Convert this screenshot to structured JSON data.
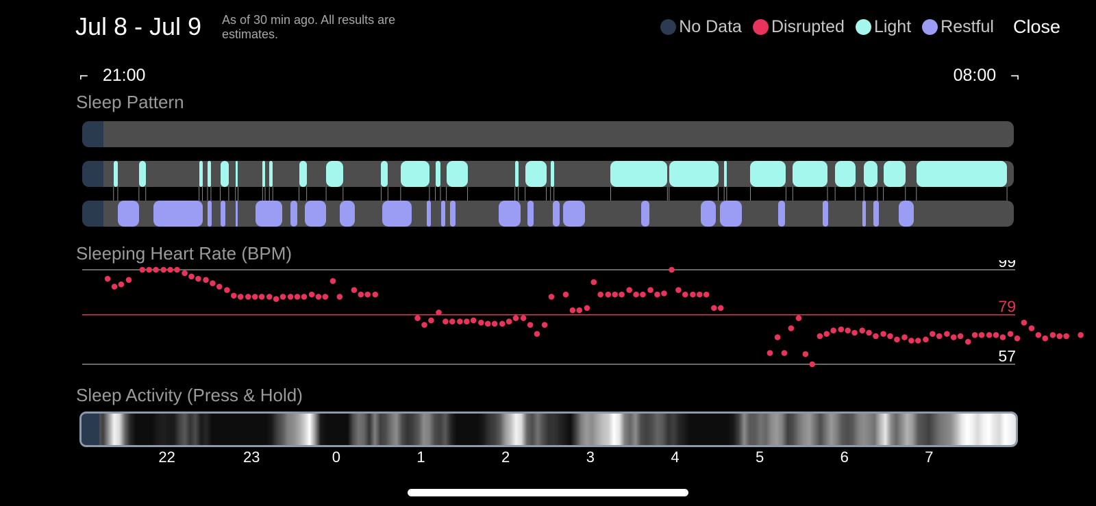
{
  "header": {
    "title": "Jul 8 - Jul 9",
    "subtitle": "As of 30 min ago. All results are estimates.",
    "close_label": "Close"
  },
  "legend": [
    {
      "label": "No Data",
      "color": "#2c3b52"
    },
    {
      "label": "Disrupted",
      "color": "#e8335a"
    },
    {
      "label": "Light",
      "color": "#a4f7ec"
    },
    {
      "label": "Restful",
      "color": "#9b9cf4"
    }
  ],
  "time_range": {
    "start": "21:00",
    "end": "08:00"
  },
  "sleep_pattern": {
    "label": "Sleep Pattern",
    "light_segments": [
      [
        0.37,
        0.42
      ],
      [
        0.67,
        0.75
      ],
      [
        1.38,
        1.42
      ],
      [
        1.48,
        1.52
      ],
      [
        1.63,
        1.73
      ],
      [
        1.81,
        1.84
      ],
      [
        2.13,
        2.16
      ],
      [
        2.21,
        2.25
      ],
      [
        2.56,
        2.65
      ],
      [
        2.88,
        3.08
      ],
      [
        3.53,
        3.61
      ],
      [
        3.76,
        4.1
      ],
      [
        4.17,
        4.23
      ],
      [
        4.3,
        4.55
      ],
      [
        5.11,
        5.15
      ],
      [
        5.23,
        5.48
      ],
      [
        5.53,
        5.57
      ],
      [
        6.24,
        6.91
      ],
      [
        6.93,
        7.51
      ],
      [
        7.58,
        7.61
      ],
      [
        7.89,
        8.31
      ],
      [
        8.39,
        8.8
      ],
      [
        8.89,
        9.13
      ],
      [
        9.23,
        9.39
      ],
      [
        9.46,
        9.72
      ],
      [
        9.85,
        10.92
      ]
    ],
    "restful_segments": [
      [
        0.42,
        0.67
      ],
      [
        0.84,
        1.42
      ],
      [
        1.48,
        1.53
      ],
      [
        1.63,
        1.69
      ],
      [
        1.81,
        1.84
      ],
      [
        2.05,
        2.36
      ],
      [
        2.46,
        2.54
      ],
      [
        2.63,
        2.88
      ],
      [
        3.04,
        3.22
      ],
      [
        3.54,
        3.89
      ],
      [
        4.07,
        4.12
      ],
      [
        4.24,
        4.29
      ],
      [
        4.34,
        4.41
      ],
      [
        4.92,
        5.18
      ],
      [
        5.26,
        5.33
      ],
      [
        5.56,
        5.64
      ],
      [
        5.68,
        5.94
      ],
      [
        6.6,
        6.7
      ],
      [
        7.3,
        7.48
      ],
      [
        7.53,
        7.79
      ],
      [
        8.22,
        8.3
      ],
      [
        8.74,
        8.81
      ],
      [
        9.21,
        9.25
      ],
      [
        9.34,
        9.41
      ],
      [
        9.64,
        9.82
      ]
    ]
  },
  "heart_rate": {
    "label": "Sleeping Heart Rate (BPM)",
    "max_label": "99",
    "avg_label": "79",
    "min_label": "57",
    "max": 99,
    "avg": 79,
    "min": 57,
    "samples": [
      [
        0.3,
        95
      ],
      [
        0.38,
        91.5
      ],
      [
        0.46,
        92.5
      ],
      [
        0.55,
        94.5
      ],
      [
        0.71,
        99
      ],
      [
        0.79,
        99
      ],
      [
        0.87,
        99
      ],
      [
        0.96,
        99
      ],
      [
        1.04,
        99
      ],
      [
        1.12,
        99
      ],
      [
        1.21,
        97.5
      ],
      [
        1.29,
        96
      ],
      [
        1.37,
        95
      ],
      [
        1.46,
        94.5
      ],
      [
        1.54,
        93
      ],
      [
        1.62,
        91.5
      ],
      [
        1.71,
        90
      ],
      [
        1.79,
        87.5
      ],
      [
        1.87,
        87
      ],
      [
        1.96,
        87
      ],
      [
        2.04,
        87
      ],
      [
        2.12,
        87
      ],
      [
        2.21,
        87
      ],
      [
        2.29,
        86
      ],
      [
        2.37,
        87
      ],
      [
        2.46,
        87
      ],
      [
        2.54,
        87
      ],
      [
        2.62,
        87
      ],
      [
        2.71,
        88
      ],
      [
        2.79,
        87
      ],
      [
        2.87,
        87
      ],
      [
        2.96,
        94
      ],
      [
        3.04,
        87
      ],
      [
        3.21,
        90
      ],
      [
        3.29,
        88
      ],
      [
        3.37,
        88
      ],
      [
        3.46,
        88
      ],
      [
        3.96,
        77.5
      ],
      [
        4.04,
        74.5
      ],
      [
        4.12,
        76.5
      ],
      [
        4.21,
        80
      ],
      [
        4.29,
        76
      ],
      [
        4.37,
        76
      ],
      [
        4.46,
        76
      ],
      [
        4.54,
        76
      ],
      [
        4.62,
        76.5
      ],
      [
        4.71,
        75.5
      ],
      [
        4.79,
        75
      ],
      [
        4.87,
        75
      ],
      [
        4.96,
        75
      ],
      [
        5.04,
        76
      ],
      [
        5.12,
        77.5
      ],
      [
        5.21,
        77.5
      ],
      [
        5.29,
        74.5
      ],
      [
        5.37,
        70.5
      ],
      [
        5.46,
        74.5
      ],
      [
        5.54,
        87
      ],
      [
        5.71,
        88
      ],
      [
        5.79,
        81
      ],
      [
        5.87,
        81
      ],
      [
        5.96,
        82
      ],
      [
        6.04,
        93.5
      ],
      [
        6.12,
        88
      ],
      [
        6.21,
        88
      ],
      [
        6.29,
        88
      ],
      [
        6.37,
        88
      ],
      [
        6.46,
        90
      ],
      [
        6.54,
        88
      ],
      [
        6.62,
        88
      ],
      [
        6.71,
        90
      ],
      [
        6.79,
        88
      ],
      [
        6.87,
        88.5
      ],
      [
        6.96,
        99
      ],
      [
        7.04,
        90
      ],
      [
        7.12,
        88
      ],
      [
        7.21,
        88
      ],
      [
        7.29,
        88
      ],
      [
        7.37,
        88
      ],
      [
        7.46,
        82
      ],
      [
        7.54,
        82
      ],
      [
        8.12,
        62
      ],
      [
        8.21,
        69
      ],
      [
        8.29,
        62
      ],
      [
        8.37,
        73
      ],
      [
        8.46,
        77.5
      ],
      [
        8.54,
        61.5
      ],
      [
        8.62,
        57
      ],
      [
        8.71,
        69.5
      ],
      [
        8.79,
        70.5
      ],
      [
        8.87,
        72
      ],
      [
        8.96,
        72.5
      ],
      [
        9.04,
        72
      ],
      [
        9.12,
        71
      ],
      [
        9.21,
        72
      ],
      [
        9.29,
        71
      ],
      [
        9.37,
        69.5
      ],
      [
        9.46,
        70.5
      ],
      [
        9.54,
        69.5
      ],
      [
        9.62,
        68
      ],
      [
        9.71,
        69
      ],
      [
        9.79,
        67.5
      ],
      [
        9.87,
        67.5
      ],
      [
        9.96,
        68
      ],
      [
        10.04,
        70.5
      ],
      [
        10.12,
        69.5
      ],
      [
        10.21,
        70.5
      ],
      [
        10.29,
        69
      ],
      [
        10.37,
        69.5
      ],
      [
        10.46,
        67
      ],
      [
        10.54,
        70
      ],
      [
        10.62,
        70
      ],
      [
        10.71,
        70
      ],
      [
        10.79,
        70
      ],
      [
        10.87,
        69
      ],
      [
        10.96,
        70.5
      ],
      [
        11.04,
        68.5
      ],
      [
        11.12,
        75.5
      ],
      [
        11.21,
        73
      ],
      [
        11.29,
        70
      ],
      [
        11.37,
        68.5
      ],
      [
        11.46,
        70
      ],
      [
        11.54,
        69.5
      ],
      [
        11.62,
        69.5
      ],
      [
        11.79,
        70
      ]
    ]
  },
  "activity": {
    "label": "Sleep Activity (Press & Hold)",
    "intensity": [
      0.3,
      0.9,
      0.15,
      0.35,
      0.25,
      0.6,
      0.95,
      0.85,
      0.4,
      0.15,
      0.05,
      0.05,
      0.05,
      0.05,
      0.1,
      0.12,
      0.1,
      0.1,
      0.25,
      0.35,
      0.2,
      0.3,
      0.1,
      0.15,
      0.05,
      0.05,
      0.05,
      0.05,
      0.05,
      0.05,
      0.05,
      0.05,
      0.05,
      0.05,
      0.05,
      0.1,
      0.25,
      0.35,
      0.5,
      0.55,
      0.65,
      0.8,
      1,
      0.6,
      0.1,
      0.05,
      0.05,
      0.05,
      0.05,
      0.05,
      0.3,
      0.45,
      0.4,
      0.2,
      0.5,
      0.25,
      0.3,
      0.45,
      0.55,
      0.3,
      0.2,
      0.25,
      0.35,
      0.55,
      0.5,
      0.3,
      0.25,
      0.35,
      0.15,
      0.05,
      0.05,
      0.05,
      0.05,
      0.05,
      0.1,
      0.2,
      0.25,
      0.35,
      0.6,
      0.75,
      0.95,
      0.85,
      0.4,
      0.3,
      0.45,
      0.3,
      0.2,
      0.2,
      0.15,
      0.1,
      0.05,
      0.25,
      0.5,
      0.6,
      0.55,
      0.65,
      0.75,
      0.8,
      1,
      0.9,
      0.5,
      0.4,
      0.55,
      0.3,
      0.25,
      0.3,
      0.4,
      0.35,
      0.2,
      0.25,
      0.15,
      0.1,
      0.05,
      0.05,
      0.05,
      0.05,
      0.05,
      0.05,
      0.05,
      0.05,
      0.1,
      0.25,
      0.55,
      0.35,
      0.35,
      0.45,
      0.4,
      0.55,
      0.6,
      0.5,
      0.25,
      0.3,
      0.45,
      0.55,
      0.6,
      0.45,
      0.3,
      0.45,
      0.6,
      0.5,
      0.35,
      0.3,
      0.35,
      0.5,
      0.55,
      0.5,
      0.45,
      0.7,
      0.9,
      0.55,
      0.4,
      0.55,
      0.7,
      0.6,
      0.35,
      0.3,
      0.25,
      0.35,
      0.45,
      0.5,
      0.55,
      0.7,
      0.9,
      1,
      0.95,
      0.85,
      0.95,
      1,
      0.9,
      0.85,
      1,
      0.95,
      0.9
    ]
  },
  "hour_axis": [
    {
      "label": "22",
      "h": 1
    },
    {
      "label": "23",
      "h": 2
    },
    {
      "label": "0",
      "h": 3
    },
    {
      "label": "1",
      "h": 4
    },
    {
      "label": "2",
      "h": 5
    },
    {
      "label": "3",
      "h": 6
    },
    {
      "label": "4",
      "h": 7
    },
    {
      "label": "5",
      "h": 8
    },
    {
      "label": "6",
      "h": 9
    },
    {
      "label": "7",
      "h": 10
    }
  ]
}
